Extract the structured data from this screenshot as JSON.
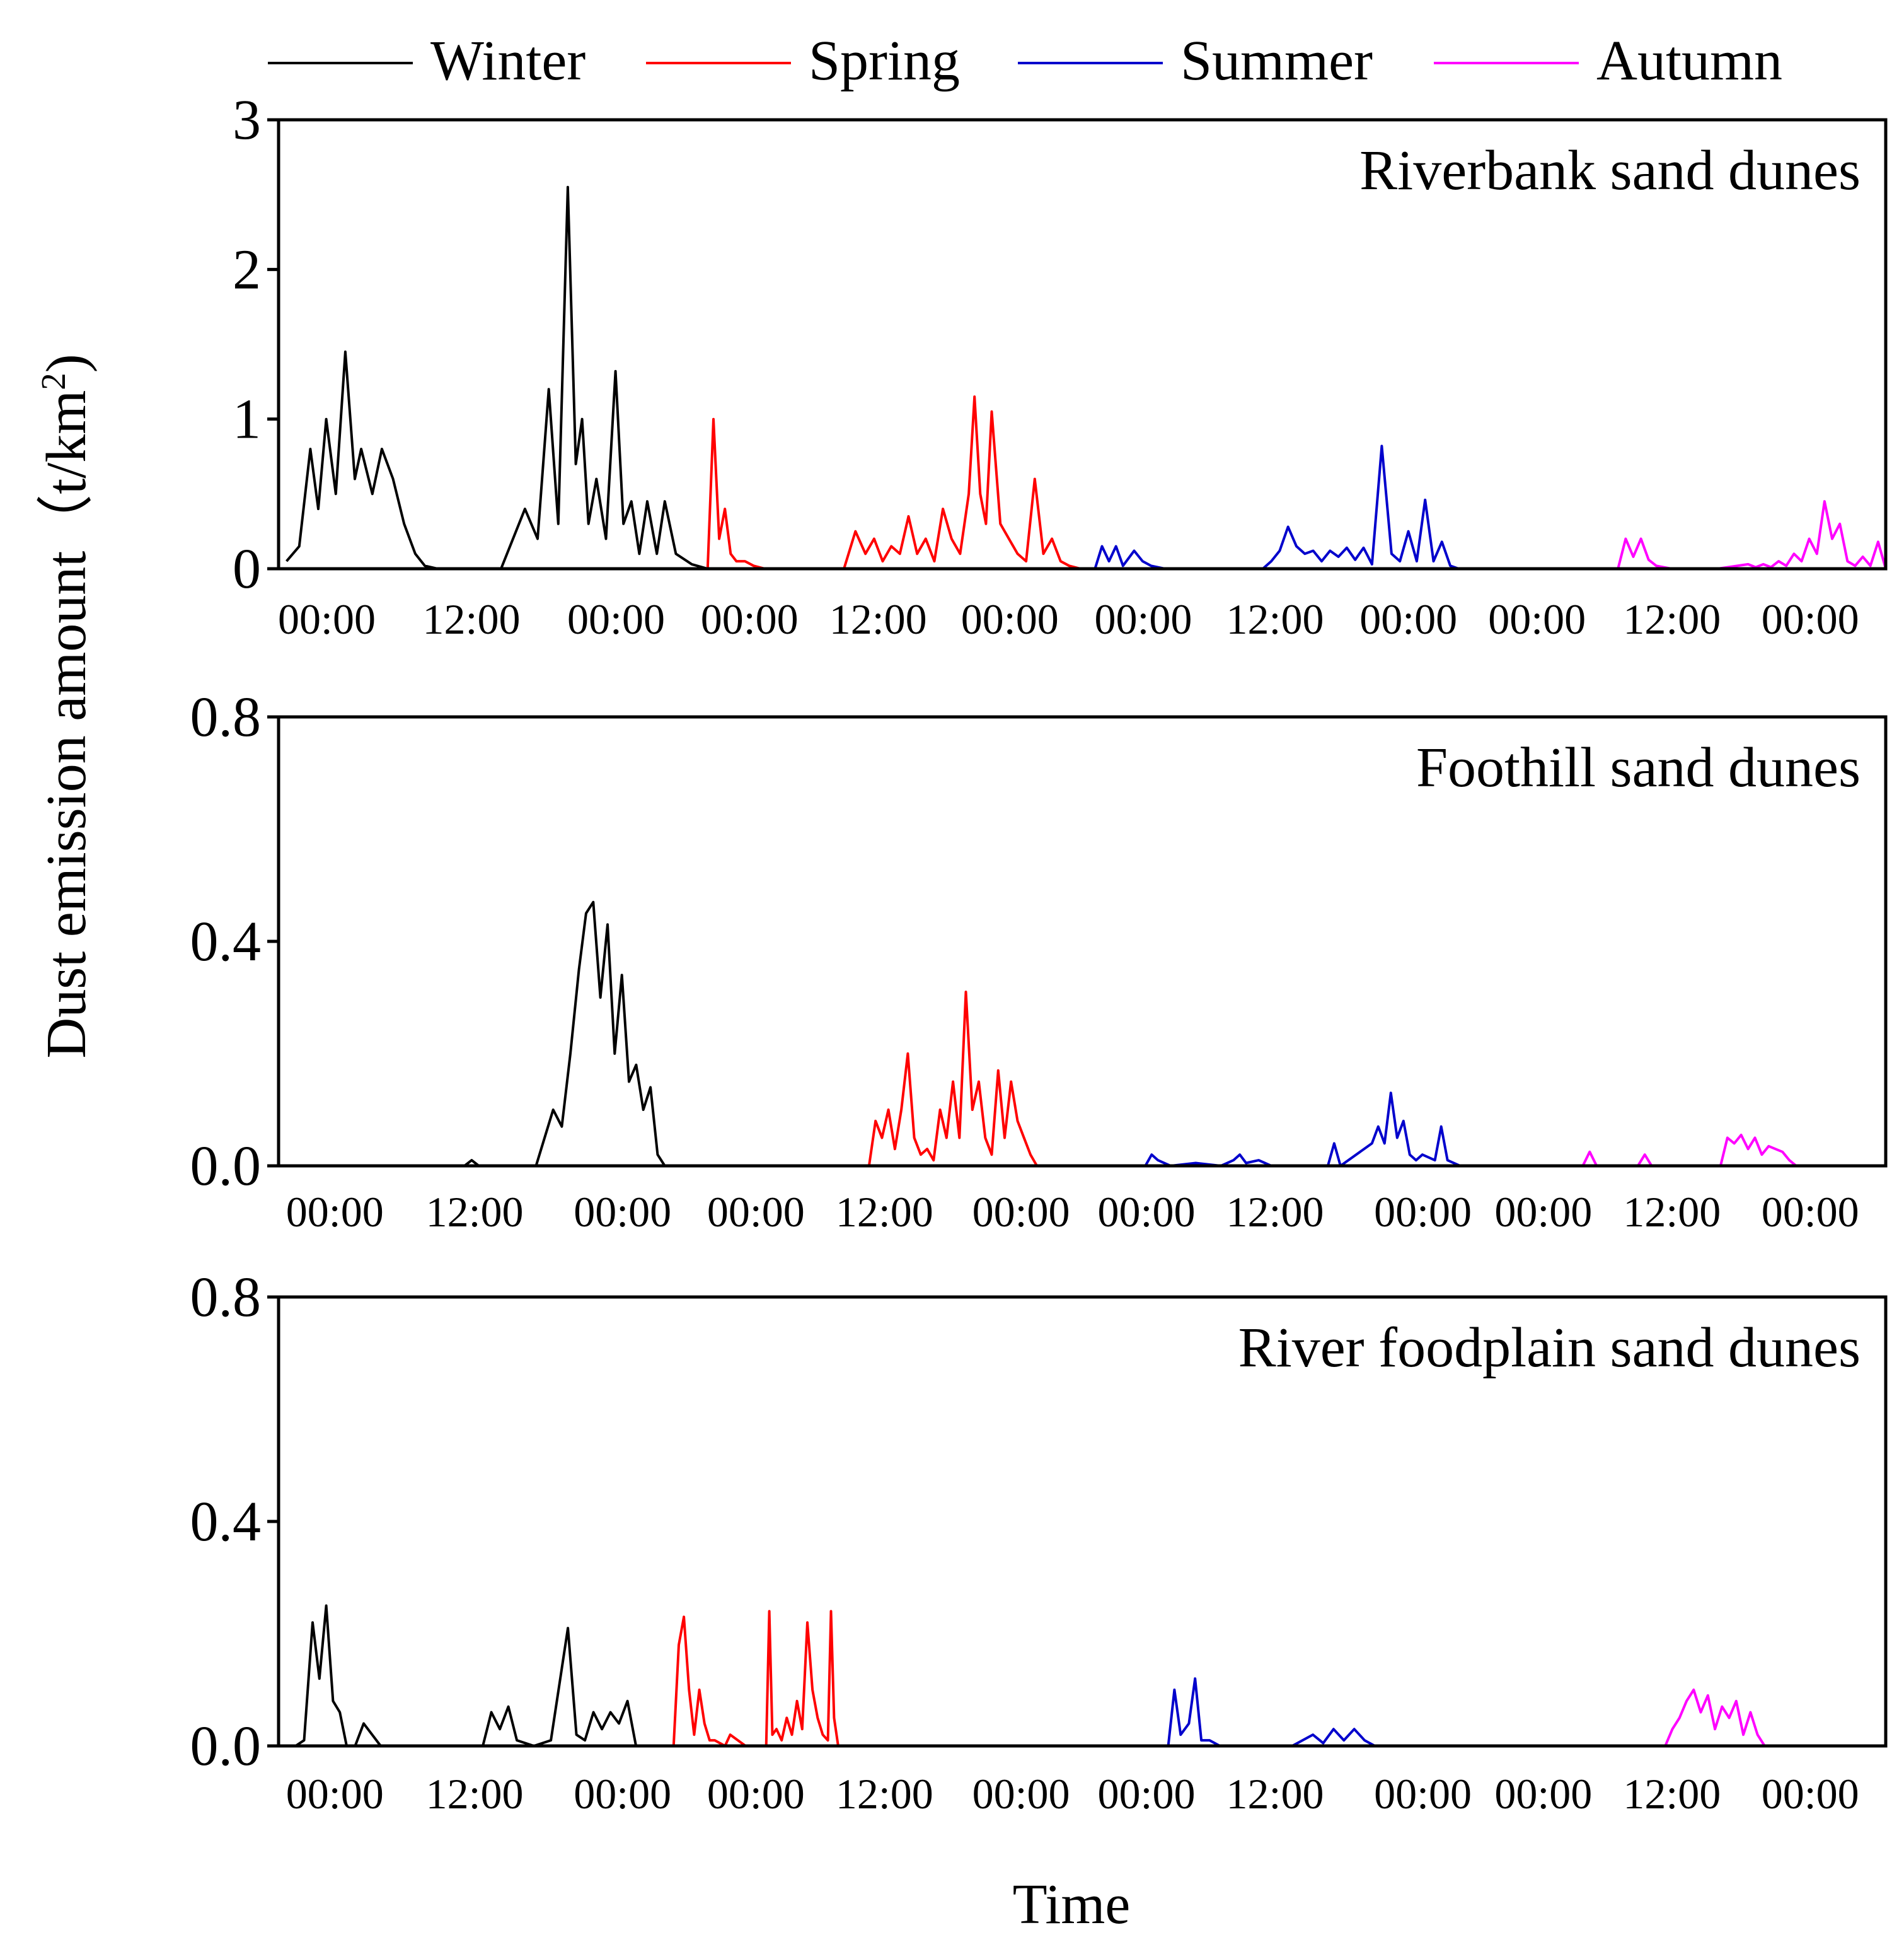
{
  "legend": {
    "items": [
      {
        "label": "Winter",
        "color": "#000000"
      },
      {
        "label": "Spring",
        "color": "#ff0000"
      },
      {
        "label": "Summer",
        "color": "#0000cc"
      },
      {
        "label": "Autumn",
        "color": "#ff00ff"
      }
    ]
  },
  "ylabel": "Dust emission amount（t/km",
  "ylabel_sup": "2",
  "ylabel_close": ")",
  "xlabel": "Time",
  "chart_data": [
    {
      "type": "line",
      "title": "Riverbank sand dunes",
      "ylim": [
        0,
        3
      ],
      "yticks": [
        "0",
        "1",
        "2",
        "3"
      ],
      "xticks": [
        "00:00",
        "12:00",
        "00:00",
        "00:00",
        "12:00",
        "00:00",
        "00:00",
        "12:00",
        "00:00",
        "00:00",
        "12:00",
        "00:00"
      ],
      "series": [
        {
          "name": "Winter",
          "color": "#000000",
          "x": [
            0.5,
            1.3,
            2.0,
            2.5,
            3.0,
            3.6,
            4.2,
            4.8,
            5.2,
            5.9,
            6.5,
            7.2,
            7.9,
            8.6,
            9.2,
            10.0,
            11.0,
            14.0,
            15.5,
            16.3,
            17.0,
            17.6,
            18.2,
            18.7,
            19.1,
            19.5,
            20.0,
            20.6,
            21.2,
            21.7,
            22.2,
            22.7,
            23.2,
            23.8,
            24.3,
            25.0,
            26.0,
            27.0
          ],
          "values": [
            0.05,
            0.15,
            0.8,
            0.4,
            1.0,
            0.5,
            1.45,
            0.6,
            0.8,
            0.5,
            0.8,
            0.6,
            0.3,
            0.1,
            0.02,
            0,
            0,
            0,
            0.4,
            0.2,
            1.2,
            0.3,
            2.55,
            0.7,
            1.0,
            0.3,
            0.6,
            0.2,
            1.32,
            0.3,
            0.45,
            0.1,
            0.45,
            0.1,
            0.45,
            0.1,
            0.03,
            0
          ]
        },
        {
          "name": "Spring",
          "color": "#ff0000",
          "x": [
            0.0,
            0.4,
            0.8,
            1.2,
            1.6,
            2.0,
            2.6,
            3.2,
            4.0,
            5.0,
            6.0,
            9.5,
            10.3,
            11.0,
            11.6,
            12.2,
            12.8,
            13.4,
            14.0,
            14.6,
            15.2,
            15.8,
            16.4,
            17.0,
            17.6,
            18.2,
            18.6,
            19.0,
            19.4,
            19.8,
            20.4,
            21.0,
            21.6,
            22.2,
            22.8,
            23.4,
            24.0,
            24.6,
            25.2,
            26.0,
            27.0
          ],
          "values": [
            0,
            1.0,
            0.2,
            0.4,
            0.1,
            0.05,
            0.05,
            0.02,
            0,
            0,
            0,
            0,
            0.25,
            0.1,
            0.2,
            0.05,
            0.15,
            0.1,
            0.35,
            0.1,
            0.2,
            0.05,
            0.4,
            0.2,
            0.1,
            0.5,
            1.15,
            0.5,
            0.3,
            1.05,
            0.3,
            0.2,
            0.1,
            0.05,
            0.6,
            0.1,
            0.2,
            0.05,
            0.02,
            0,
            0
          ]
        },
        {
          "name": "Summer",
          "color": "#0000cc",
          "x": [
            0.0,
            0.5,
            1.0,
            1.5,
            2.0,
            2.8,
            3.4,
            4.0,
            5.0,
            12.0,
            12.6,
            13.2,
            13.8,
            14.4,
            15.0,
            15.6,
            16.2,
            16.8,
            17.4,
            18.0,
            18.6,
            19.2,
            19.8,
            20.5,
            21.2,
            21.8,
            22.4,
            23.0,
            23.6,
            24.2,
            24.8,
            25.4,
            26.0,
            27.0
          ],
          "values": [
            0,
            0.15,
            0.05,
            0.15,
            0.02,
            0.12,
            0.05,
            0.02,
            0,
            0,
            0.05,
            0.12,
            0.28,
            0.15,
            0.1,
            0.12,
            0.05,
            0.12,
            0.08,
            0.14,
            0.06,
            0.14,
            0.03,
            0.82,
            0.1,
            0.05,
            0.25,
            0.05,
            0.46,
            0.05,
            0.18,
            0.02,
            0,
            0
          ]
        },
        {
          "name": "Autumn",
          "color": "#ff00ff",
          "x": [
            0.0,
            9.5,
            10.0,
            10.5,
            11.0,
            11.5,
            12.0,
            13.0,
            16.0,
            18.0,
            18.5,
            19.0,
            19.5,
            20.0,
            20.5,
            21.0,
            21.5,
            22.0,
            22.5,
            23.0,
            23.5,
            24.0,
            24.5,
            25.0,
            25.5,
            26.0,
            26.5,
            27.0
          ],
          "values": [
            0,
            0,
            0.2,
            0.08,
            0.2,
            0.06,
            0.02,
            0,
            0,
            0.03,
            0.01,
            0.03,
            0.01,
            0.05,
            0.02,
            0.1,
            0.05,
            0.2,
            0.1,
            0.45,
            0.2,
            0.3,
            0.05,
            0.02,
            0.08,
            0.02,
            0.18,
            0
          ]
        }
      ]
    },
    {
      "type": "line",
      "title": "Foothill sand dunes",
      "ylim": [
        0,
        0.8
      ],
      "yticks": [
        "0.0",
        "0.4",
        "0.8"
      ],
      "xticks": [
        "00:00",
        "12:00",
        "00:00",
        "00:00",
        "12:00",
        "00:00",
        "00:00",
        "12:00",
        "00:00",
        "00:00",
        "12:00",
        "00:00"
      ],
      "series": [
        {
          "name": "Winter",
          "color": "#000000",
          "x": [
            0.0,
            10.0,
            13.0,
            13.5,
            14.0,
            15.0,
            18.0,
            18.6,
            19.2,
            19.8,
            20.4,
            21.0,
            21.5,
            22.0,
            22.5,
            23.0,
            23.5,
            24.0,
            24.5,
            25.0,
            25.5,
            26.0,
            26.5,
            27.0,
            30.0
          ],
          "values": [
            0,
            0,
            0,
            0.01,
            0,
            0,
            0,
            0.05,
            0.1,
            0.07,
            0.2,
            0.35,
            0.45,
            0.47,
            0.3,
            0.43,
            0.2,
            0.34,
            0.15,
            0.18,
            0.1,
            0.14,
            0.02,
            0,
            0
          ]
        },
        {
          "name": "Spring",
          "color": "#ff0000",
          "x": [
            0.0,
            12.5,
            13.0,
            13.5,
            14.0,
            14.5,
            15.0,
            15.5,
            16.0,
            16.5,
            17.0,
            17.5,
            18.0,
            18.5,
            19.0,
            19.5,
            20.0,
            20.5,
            21.0,
            21.5,
            22.0,
            22.5,
            23.0,
            23.5,
            24.0,
            24.5,
            25.0,
            25.5,
            30.0
          ],
          "values": [
            0,
            0,
            0.08,
            0.05,
            0.1,
            0.03,
            0.1,
            0.2,
            0.05,
            0.02,
            0.03,
            0.01,
            0.1,
            0.05,
            0.15,
            0.05,
            0.31,
            0.1,
            0.15,
            0.05,
            0.02,
            0.17,
            0.05,
            0.15,
            0.08,
            0.05,
            0.02,
            0,
            0
          ]
        },
        {
          "name": "Summer",
          "color": "#0000cc",
          "x": [
            0.0,
            4.0,
            4.5,
            5.0,
            6.0,
            8.0,
            10.0,
            11.0,
            11.5,
            12.0,
            13.0,
            14.0,
            18.5,
            19.0,
            19.5,
            22.0,
            22.5,
            23.0,
            23.5,
            24.0,
            24.5,
            25.0,
            25.5,
            26.0,
            27.0,
            27.5,
            28.0,
            29.0,
            30.0
          ],
          "values": [
            0,
            0,
            0.02,
            0.01,
            0,
            0.005,
            0,
            0.01,
            0.02,
            0.005,
            0.01,
            0,
            0,
            0.04,
            0,
            0.04,
            0.07,
            0.04,
            0.13,
            0.05,
            0.08,
            0.02,
            0.01,
            0.02,
            0.01,
            0.07,
            0.01,
            0,
            0
          ]
        },
        {
          "name": "Autumn",
          "color": "#ff00ff",
          "x": [
            0.0,
            8.0,
            8.5,
            9.0,
            12.0,
            12.5,
            13.0,
            18.0,
            18.5,
            19.0,
            19.5,
            20.0,
            20.5,
            21.0,
            21.5,
            22.0,
            22.5,
            23.0,
            23.5,
            24.0,
            30.0
          ],
          "values": [
            0,
            0,
            0.025,
            0,
            0,
            0.02,
            0,
            0,
            0.05,
            0.04,
            0.055,
            0.03,
            0.05,
            0.02,
            0.035,
            0.03,
            0.025,
            0.01,
            0,
            0,
            0
          ]
        }
      ]
    },
    {
      "type": "line",
      "title": "River foodplain sand dunes",
      "ylim": [
        0,
        0.8
      ],
      "yticks": [
        "0.0",
        "0.4",
        "0.8"
      ],
      "xticks": [
        "00:00",
        "12:00",
        "00:00",
        "00:00",
        "12:00",
        "00:00",
        "00:00",
        "12:00",
        "00:00",
        "00:00",
        "12:00",
        "00:00"
      ],
      "series": [
        {
          "name": "Winter",
          "color": "#000000",
          "x": [
            0.0,
            1.0,
            1.5,
            2.0,
            2.4,
            2.8,
            3.2,
            3.6,
            4.0,
            4.5,
            5.0,
            5.5,
            6.0,
            10.0,
            12.0,
            12.5,
            13.0,
            13.5,
            14.0,
            15.0,
            16.0,
            17.0,
            17.5,
            18.0,
            18.5,
            19.0,
            19.5,
            20.0,
            20.5,
            21.0,
            22.0
          ],
          "values": [
            0,
            0,
            0.01,
            0.22,
            0.12,
            0.25,
            0.08,
            0.06,
            0,
            0,
            0.04,
            0.02,
            0,
            0,
            0,
            0.06,
            0.03,
            0.07,
            0.01,
            0,
            0.01,
            0.21,
            0.02,
            0.01,
            0.06,
            0.03,
            0.06,
            0.04,
            0.08,
            0,
            0
          ]
        },
        {
          "name": "Spring",
          "color": "#ff0000",
          "x": [
            0.0,
            2.0,
            2.5,
            3.0,
            3.5,
            4.0,
            4.5,
            5.0,
            5.5,
            6.0,
            7.0,
            7.5,
            9.0,
            11.0,
            11.3,
            11.6,
            12.0,
            12.5,
            13.0,
            13.5,
            14.0,
            14.5,
            15.0,
            15.5,
            16.0,
            16.5,
            17.0,
            17.3,
            17.6,
            18.0,
            30.0
          ],
          "values": [
            0,
            0,
            0.18,
            0.23,
            0.1,
            0.02,
            0.1,
            0.04,
            0.01,
            0.01,
            0,
            0.02,
            0,
            0,
            0.24,
            0.02,
            0.03,
            0.01,
            0.05,
            0.02,
            0.08,
            0.03,
            0.22,
            0.1,
            0.05,
            0.02,
            0.01,
            0.24,
            0.05,
            0,
            0
          ]
        },
        {
          "name": "Summer",
          "color": "#0000cc",
          "x": [
            0.0,
            10.0,
            10.3,
            10.6,
            11.0,
            11.3,
            11.6,
            12.0,
            12.5,
            13.0,
            16.0,
            16.5,
            17.0,
            17.5,
            18.0,
            18.5,
            19.0,
            19.5,
            20.0,
            21.0
          ],
          "values": [
            0,
            0,
            0.1,
            0.02,
            0.04,
            0.12,
            0.01,
            0.01,
            0,
            0,
            0,
            0.01,
            0.02,
            0.005,
            0.03,
            0.01,
            0.03,
            0.01,
            0,
            0
          ]
        },
        {
          "name": "Autumn",
          "color": "#ff00ff",
          "x": [
            0.0,
            19.0,
            19.5,
            20.0,
            20.5,
            21.0,
            21.5,
            22.0,
            22.5,
            23.0,
            23.5,
            24.0,
            24.5,
            25.0,
            25.5,
            26.0,
            26.5,
            27.0,
            30.0
          ],
          "values": [
            0,
            0,
            0.03,
            0.05,
            0.08,
            0.1,
            0.06,
            0.09,
            0.03,
            0.07,
            0.05,
            0.08,
            0.02,
            0.06,
            0.02,
            0,
            0,
            0,
            0
          ]
        }
      ]
    }
  ]
}
